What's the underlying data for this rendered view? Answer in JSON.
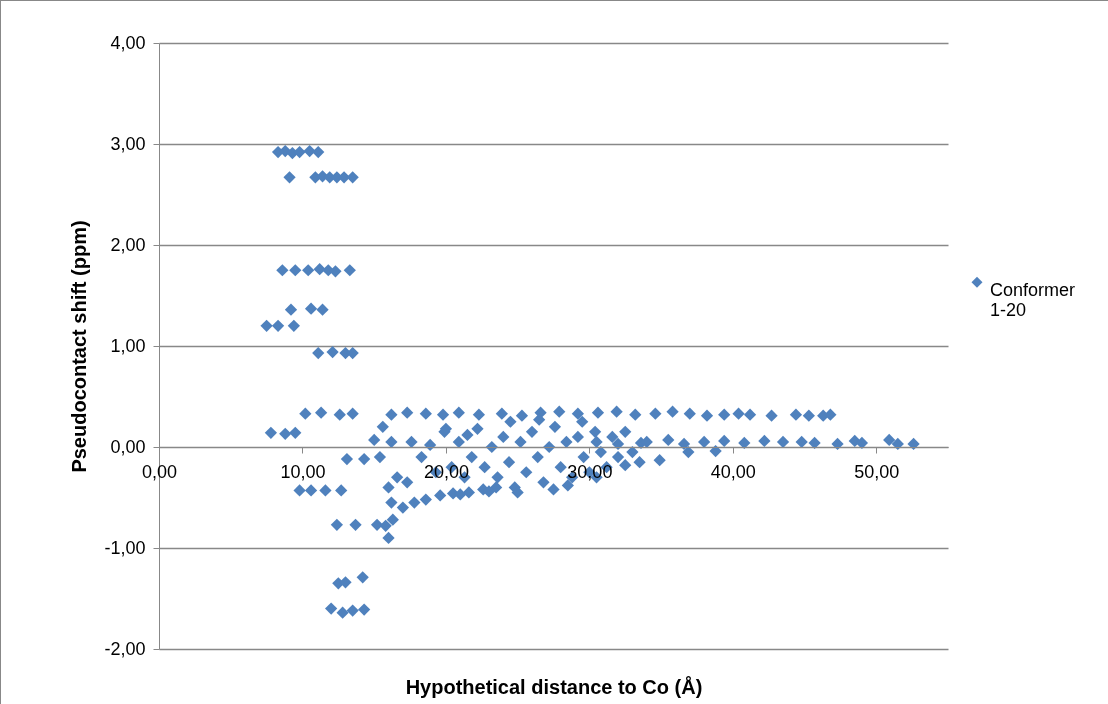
{
  "chart_data": {
    "type": "scatter",
    "xlabel": "Hypothetical distance to Co (Å)",
    "ylabel": "Pseudocontact shift (ppm)",
    "xlim": [
      0,
      55
    ],
    "xticks": [
      {
        "value": 0,
        "label": "0,00"
      },
      {
        "value": 10,
        "label": "10,00"
      },
      {
        "value": 20,
        "label": "20,00"
      },
      {
        "value": 30,
        "label": "30,00"
      },
      {
        "value": 40,
        "label": "40,00"
      },
      {
        "value": 50,
        "label": "50,00"
      }
    ],
    "ylim": [
      -2,
      4
    ],
    "yticks": [
      {
        "value": -2,
        "label": "-2,00"
      },
      {
        "value": -1,
        "label": "-1,00"
      },
      {
        "value": 0,
        "label": "0,00"
      },
      {
        "value": 1,
        "label": "1,00"
      },
      {
        "value": 2,
        "label": "2,00"
      },
      {
        "value": 3,
        "label": "3,00"
      },
      {
        "value": 4,
        "label": "4,00"
      }
    ],
    "grid": "y",
    "legend": "right",
    "marker": "diamond",
    "series": [
      {
        "name": "Conformer 1-20",
        "color": "#4f81bd",
        "x": [
          8.3,
          8.8,
          9.3,
          9.8,
          10.5,
          11.1,
          9.1,
          10.9,
          11.4,
          11.9,
          12.4,
          12.9,
          13.5,
          8.6,
          9.5,
          10.4,
          11.2,
          11.8,
          12.3,
          13.3,
          9.2,
          10.6,
          11.4,
          7.5,
          8.3,
          9.4,
          11.1,
          12.1,
          13.0,
          13.5,
          10.2,
          11.3,
          12.6,
          13.5,
          7.8,
          8.8,
          9.5,
          9.8,
          10.6,
          11.6,
          12.7,
          13.1,
          14.3,
          15.4,
          12.4,
          13.7,
          15.2,
          14.2,
          12.5,
          13.0,
          12.0,
          12.8,
          13.5,
          14.3,
          16.2,
          17.3,
          18.6,
          19.8,
          20.9,
          22.3,
          23.9,
          25.3,
          26.6,
          27.9,
          29.2,
          30.6,
          31.9,
          33.2,
          34.6,
          35.8,
          37.0,
          38.2,
          39.4,
          40.4,
          41.2,
          42.7,
          44.4,
          45.3,
          46.3,
          46.8,
          30.5,
          32.0,
          33.6,
          35.5,
          36.6,
          38.0,
          39.4,
          40.8,
          42.2,
          43.5,
          44.8,
          45.7,
          47.3,
          48.5,
          49.0,
          50.9,
          51.5,
          52.6,
          34.9,
          36.9,
          38.8,
          16.0,
          16.3,
          17.0,
          17.8,
          18.6,
          19.6,
          20.5,
          21.6,
          22.6,
          23.5,
          15.0,
          15.6,
          16.2,
          16.0,
          16.6,
          16.2,
          15.8,
          17.3,
          17.6,
          18.3,
          18.9,
          19.3,
          19.9,
          20.4,
          20.9,
          21.3,
          21.8,
          22.2,
          22.7,
          23.2,
          23.6,
          24.0,
          24.4,
          24.8,
          25.2,
          25.6,
          26.0,
          26.4,
          26.8,
          27.2,
          27.6,
          28.0,
          28.4,
          28.8,
          29.2,
          29.6,
          30.0,
          30.4,
          30.8,
          31.2,
          31.6,
          32.0,
          32.5,
          33.0,
          33.5,
          34.0,
          24.5,
          26.5,
          29.5,
          25.0,
          27.5,
          23.0,
          21.0,
          28.5,
          30.5,
          32.5,
          20.0,
          21.5
        ],
        "values": [
          2.92,
          2.93,
          2.91,
          2.92,
          2.93,
          2.92,
          2.67,
          2.67,
          2.68,
          2.67,
          2.67,
          2.67,
          2.67,
          1.75,
          1.75,
          1.75,
          1.76,
          1.75,
          1.74,
          1.75,
          1.36,
          1.37,
          1.36,
          1.2,
          1.2,
          1.2,
          0.93,
          0.94,
          0.93,
          0.93,
          0.33,
          0.34,
          0.32,
          0.33,
          0.14,
          0.13,
          0.14,
          -0.43,
          -0.43,
          -0.43,
          -0.43,
          -0.12,
          -0.12,
          -0.1,
          -0.77,
          -0.77,
          -0.77,
          -1.29,
          -1.35,
          -1.34,
          -1.6,
          -1.64,
          -1.62,
          -1.61,
          0.32,
          0.34,
          0.33,
          0.32,
          0.34,
          0.32,
          0.33,
          0.31,
          0.34,
          0.35,
          0.33,
          0.34,
          0.35,
          0.32,
          0.33,
          0.35,
          0.33,
          0.31,
          0.32,
          0.33,
          0.32,
          0.31,
          0.32,
          0.31,
          0.31,
          0.32,
          0.05,
          0.03,
          0.04,
          0.07,
          0.03,
          0.05,
          0.06,
          0.04,
          0.06,
          0.05,
          0.05,
          0.04,
          0.03,
          0.06,
          0.04,
          0.07,
          0.03,
          0.03,
          -0.13,
          -0.05,
          -0.04,
          -0.9,
          -0.72,
          -0.6,
          -0.55,
          -0.52,
          -0.48,
          -0.46,
          -0.45,
          -0.42,
          -0.4,
          0.07,
          0.2,
          0.05,
          -0.4,
          -0.3,
          -0.55,
          -0.78,
          -0.35,
          0.05,
          -0.1,
          0.02,
          -0.25,
          0.15,
          -0.2,
          0.05,
          -0.3,
          -0.1,
          0.18,
          -0.2,
          0.0,
          -0.3,
          0.1,
          -0.15,
          -0.4,
          0.05,
          -0.25,
          0.15,
          -0.1,
          -0.35,
          0.0,
          0.2,
          -0.2,
          0.05,
          -0.3,
          0.1,
          -0.1,
          -0.25,
          0.15,
          -0.05,
          -0.2,
          0.1,
          -0.1,
          0.15,
          -0.05,
          -0.15,
          0.05,
          0.25,
          0.27,
          0.25,
          -0.45,
          -0.42,
          -0.44,
          -0.47,
          -0.38,
          -0.3,
          -0.18,
          0.18,
          0.12
        ]
      }
    ]
  }
}
